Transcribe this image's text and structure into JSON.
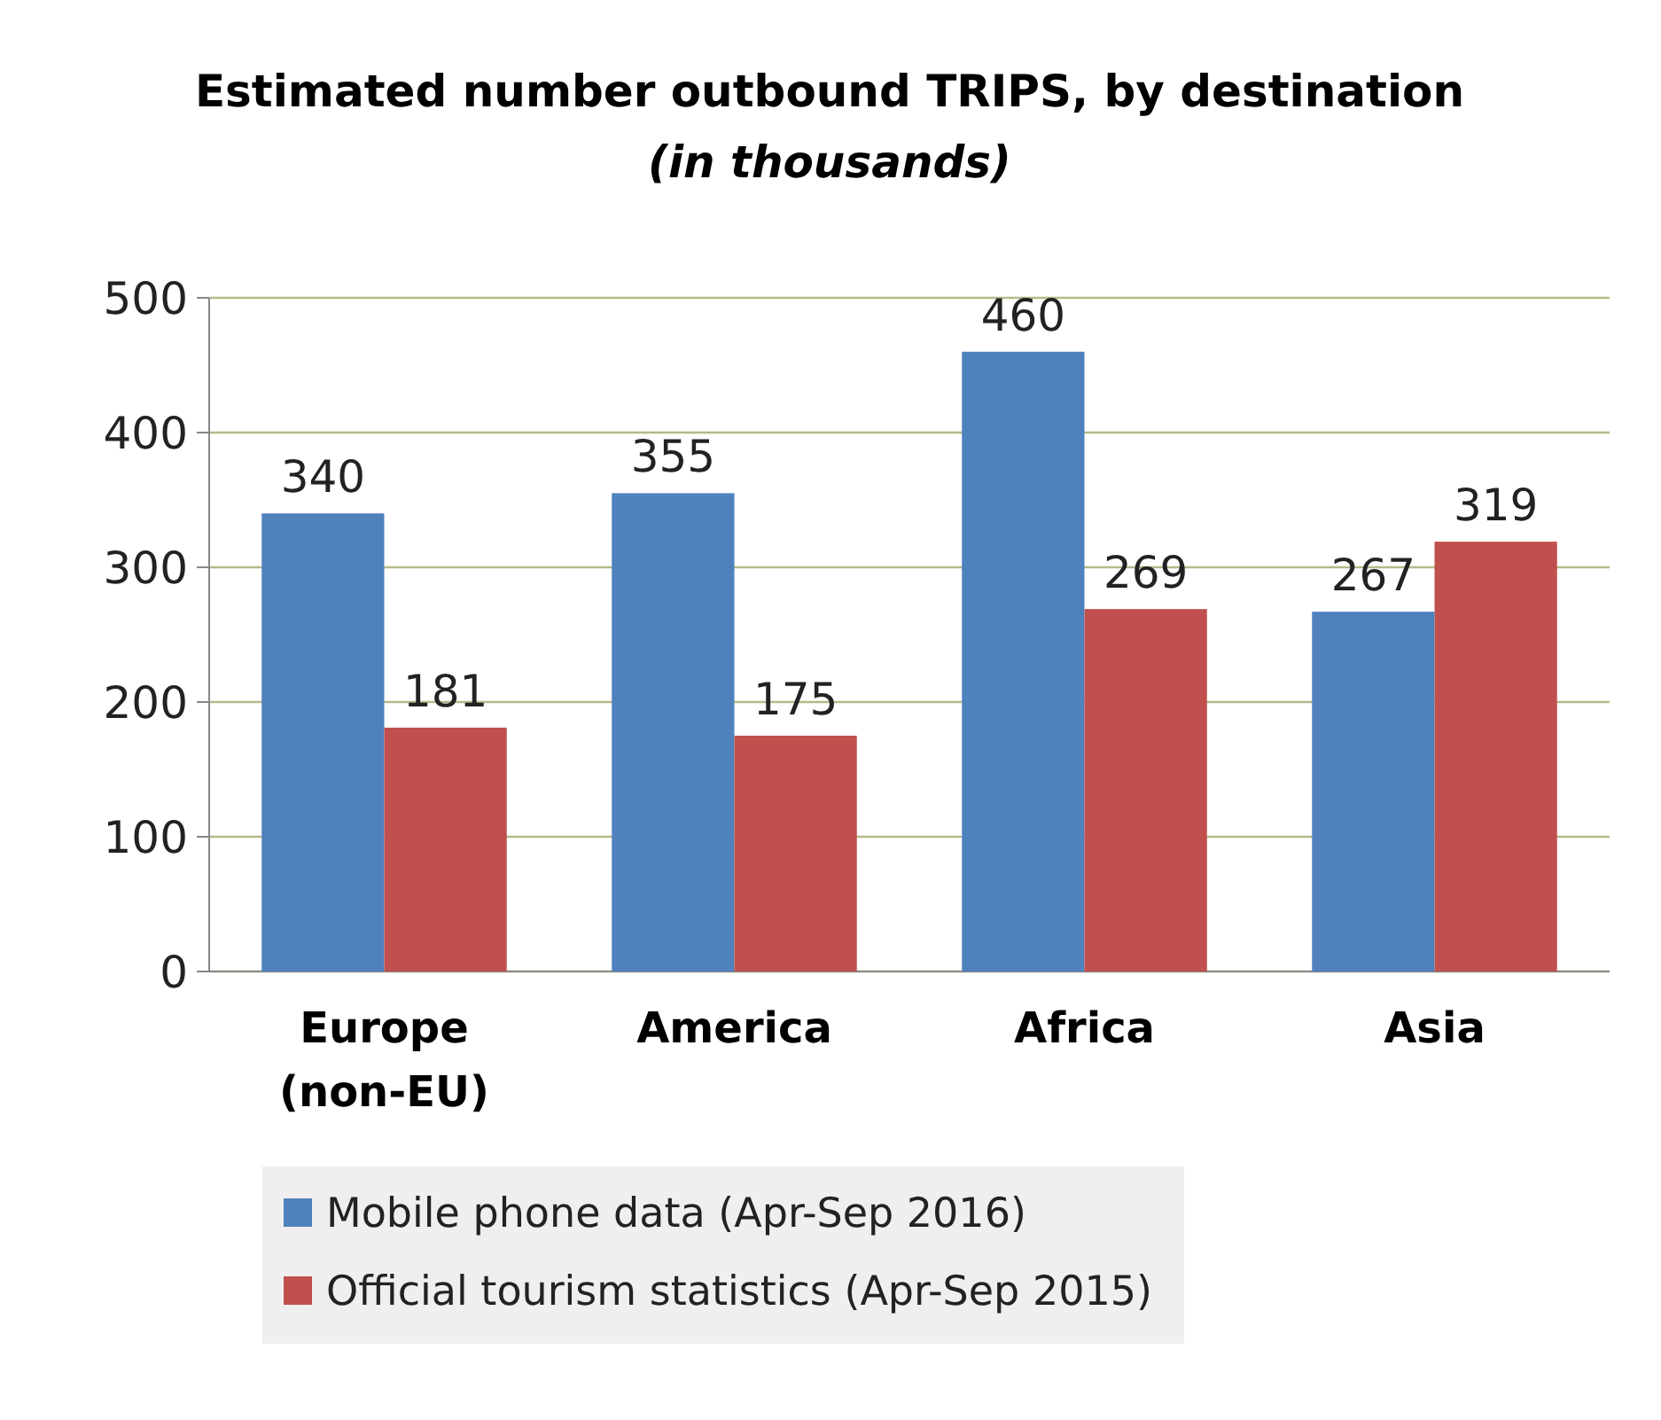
{
  "chart_data": {
    "type": "bar",
    "title": "Estimated number outbound TRIPS, by destination",
    "subtitle": "(in thousands)",
    "categories": [
      "Europe (non-EU)",
      "America",
      "Africa",
      "Asia"
    ],
    "series": [
      {
        "name": "Mobile phone data (Apr-Sep 2016)",
        "color": "#4f81bd",
        "values": [
          340,
          355,
          460,
          267
        ]
      },
      {
        "name": "Official tourism statistics (Apr-Sep 2015)",
        "color": "#c0504d",
        "values": [
          181,
          175,
          269,
          319
        ]
      }
    ],
    "ylim": [
      0,
      500
    ],
    "yticks": [
      0,
      100,
      200,
      300,
      400,
      500
    ],
    "grid": "y",
    "data_labels": true,
    "legend": "bottom"
  }
}
